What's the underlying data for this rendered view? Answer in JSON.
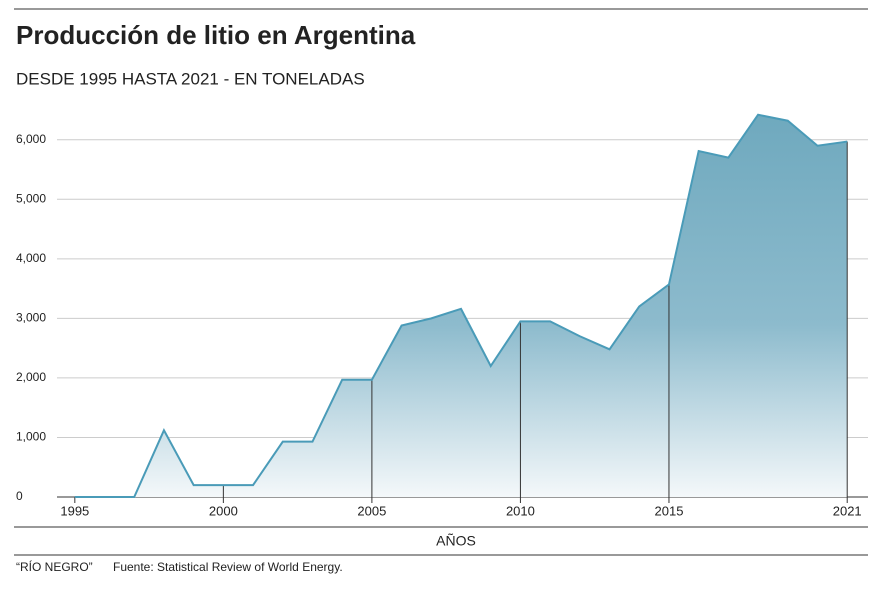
{
  "chart_data": {
    "type": "area",
    "title": "Producción de litio en Argentina",
    "subtitle": "DESDE 1995 HASTA 2021 - EN TONELADAS",
    "x_label": "AÑOS",
    "source_brand": "“RÍO NEGRO”",
    "source": "Fuente: Statistical Review of World Energy.",
    "x": [
      1995,
      1996,
      1997,
      1998,
      1999,
      2000,
      2001,
      2002,
      2003,
      2004,
      2005,
      2006,
      2007,
      2008,
      2009,
      2010,
      2011,
      2012,
      2013,
      2014,
      2015,
      2016,
      2017,
      2018,
      2019,
      2020,
      2021
    ],
    "series": [
      {
        "color": "#4a9bb8",
        "values": [
          0,
          0,
          0,
          1120,
          200,
          200,
          200,
          930,
          930,
          1970,
          1970,
          2880,
          3000,
          3160,
          2200,
          2950,
          2950,
          2700,
          2480,
          3200,
          3570,
          5810,
          5700,
          6420,
          6320,
          5900,
          5970
        ]
      }
    ],
    "xlim": [
      1994.4,
      2021.7
    ],
    "xticks": [
      1995,
      2000,
      2005,
      2010,
      2015,
      2021
    ],
    "ylim": [
      0,
      6500
    ],
    "yticks": [
      {
        "value": 0,
        "label": "0"
      },
      {
        "value": 1000,
        "label": "1,000"
      },
      {
        "value": 2000,
        "label": "2,000"
      },
      {
        "value": 3000,
        "label": "3,000"
      },
      {
        "value": 4000,
        "label": "4,000"
      },
      {
        "value": 5000,
        "label": "5,000"
      },
      {
        "value": 6000,
        "label": "6,000"
      }
    ],
    "grid": true
  }
}
